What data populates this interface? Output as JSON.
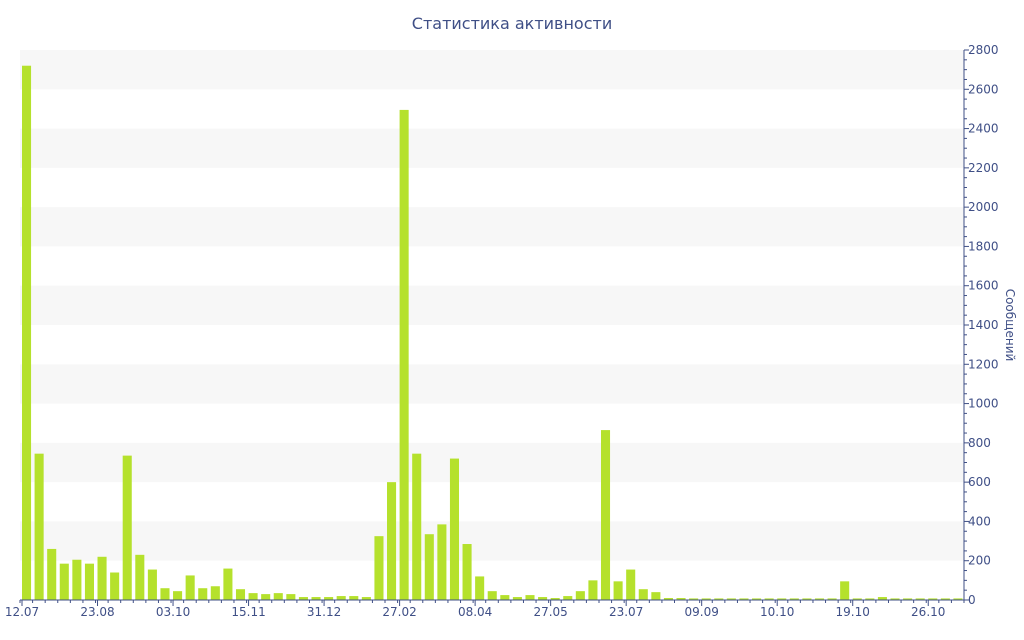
{
  "chart_data": {
    "type": "bar",
    "title": "Статистика активности",
    "xlabel": "",
    "ylabel": "Сообщений",
    "y_axis_side": "right",
    "ylim": [
      0,
      2800
    ],
    "y_ticks": [
      0,
      200,
      400,
      600,
      800,
      1000,
      1200,
      1400,
      1600,
      1800,
      2000,
      2200,
      2400,
      2600,
      2800
    ],
    "grid": "alternating horizontal bands",
    "legend": "none",
    "bar_color": "#b5e12c",
    "band_color": "#f7f7f7",
    "axis_color": "#3f4f86",
    "x_tick_labels": [
      {
        "label": "12.07",
        "at_bar": 0
      },
      {
        "label": "23.08",
        "at_bar": 6
      },
      {
        "label": "03.10",
        "at_bar": 12
      },
      {
        "label": "15.11",
        "at_bar": 18
      },
      {
        "label": "31.12",
        "at_bar": 24
      },
      {
        "label": "27.02",
        "at_bar": 30
      },
      {
        "label": "08.04",
        "at_bar": 36
      },
      {
        "label": "27.05",
        "at_bar": 42
      },
      {
        "label": "23.07",
        "at_bar": 48
      },
      {
        "label": "09.09",
        "at_bar": 54
      },
      {
        "label": "10.10",
        "at_bar": 60
      },
      {
        "label": "19.10",
        "at_bar": 66
      },
      {
        "label": "26.10",
        "at_bar": 72
      }
    ],
    "values": [
      2720,
      745,
      260,
      185,
      205,
      185,
      220,
      140,
      735,
      230,
      155,
      60,
      45,
      125,
      60,
      70,
      160,
      55,
      35,
      30,
      35,
      30,
      15,
      15,
      15,
      20,
      20,
      15,
      325,
      600,
      2495,
      745,
      335,
      385,
      720,
      285,
      120,
      45,
      25,
      15,
      25,
      15,
      10,
      20,
      45,
      100,
      865,
      95,
      155,
      55,
      40,
      10,
      10,
      8,
      8,
      8,
      8,
      8,
      8,
      8,
      8,
      8,
      8,
      8,
      8,
      95,
      8,
      8,
      15,
      8,
      8,
      8,
      8,
      8,
      8
    ]
  }
}
